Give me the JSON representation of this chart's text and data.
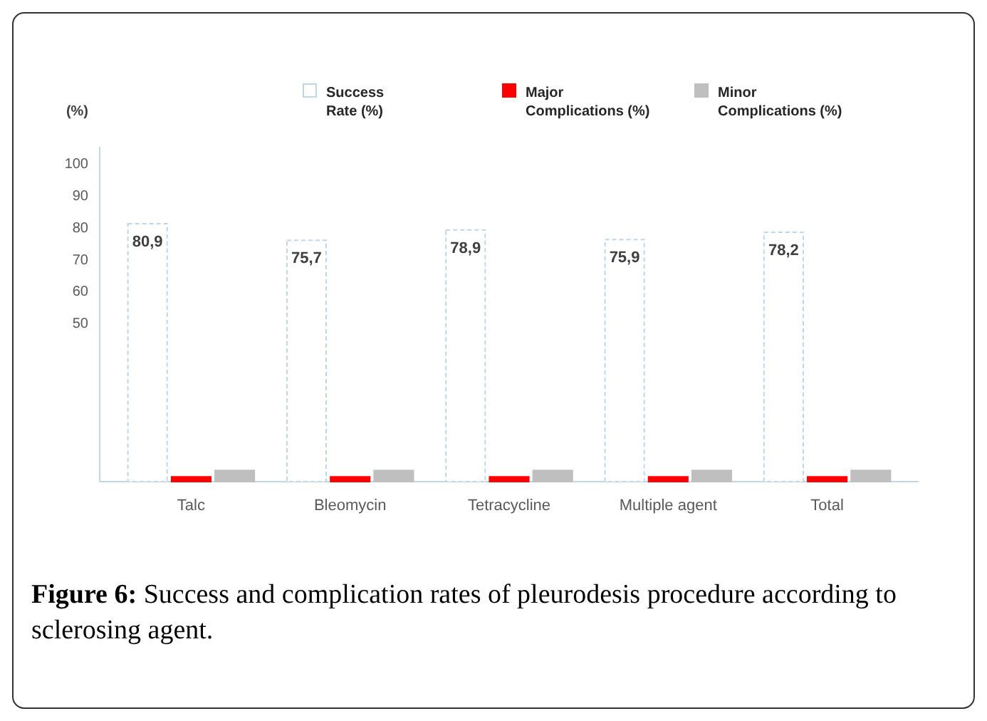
{
  "chart_data": {
    "type": "bar",
    "ylabel": "(%)",
    "categories": [
      "Talc",
      "Bleomycin",
      "Tetracycline",
      "Multiple agent",
      "Total"
    ],
    "series": [
      {
        "name": "Success Rate (%)",
        "color": "#bdd7ee",
        "values": [
          80.9,
          75.7,
          78.9,
          75.9,
          78.2
        ],
        "value_labels": [
          "80,9",
          "75,7",
          "78,9",
          "75,9",
          "78,2"
        ]
      },
      {
        "name": "Major Complications (%)",
        "color": "#ff0000",
        "values": [
          1.5,
          1.5,
          1.5,
          1.5,
          1.5
        ]
      },
      {
        "name": "Minor Complications (%)",
        "color": "#bfbfbf",
        "values": [
          3.5,
          3.5,
          3.5,
          3.5,
          3.5
        ]
      }
    ],
    "ylim": [
      0,
      105
    ],
    "yticks": [
      50,
      60,
      70,
      80,
      90,
      100
    ],
    "legend": "top",
    "annotations": [
      "Figure 6: Success and complication rates of pleurodesis procedure according to sclerosing agent."
    ]
  }
}
